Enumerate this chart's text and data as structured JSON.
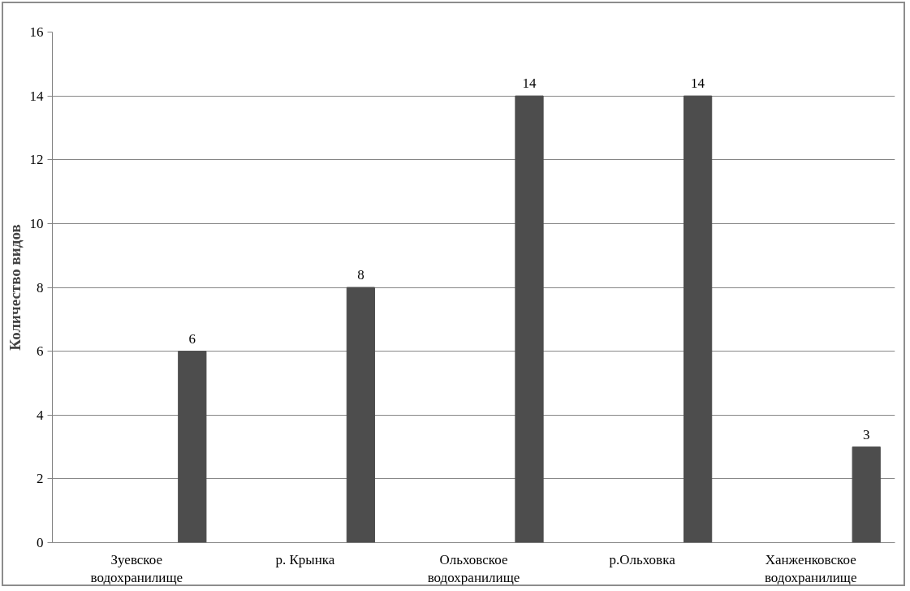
{
  "chart_data": {
    "type": "bar",
    "categories": [
      "Зуевское водохранилище",
      "р. Крынка",
      "Ольховское водохранилище",
      "р.Ольховка",
      "Ханженковское водохранилище"
    ],
    "series": [
      {
        "color": "#4f81bd",
        "values": [
          null,
          null,
          null,
          null,
          null
        ]
      },
      {
        "color": "#4d4d4d",
        "values": [
          6,
          8,
          14,
          14,
          3
        ]
      }
    ],
    "ylabel": "Количество видов",
    "ylim": [
      0,
      16
    ],
    "yticks": [
      0,
      2,
      4,
      6,
      8,
      10,
      12,
      14,
      16
    ],
    "grid": "y",
    "data_labels": true
  }
}
